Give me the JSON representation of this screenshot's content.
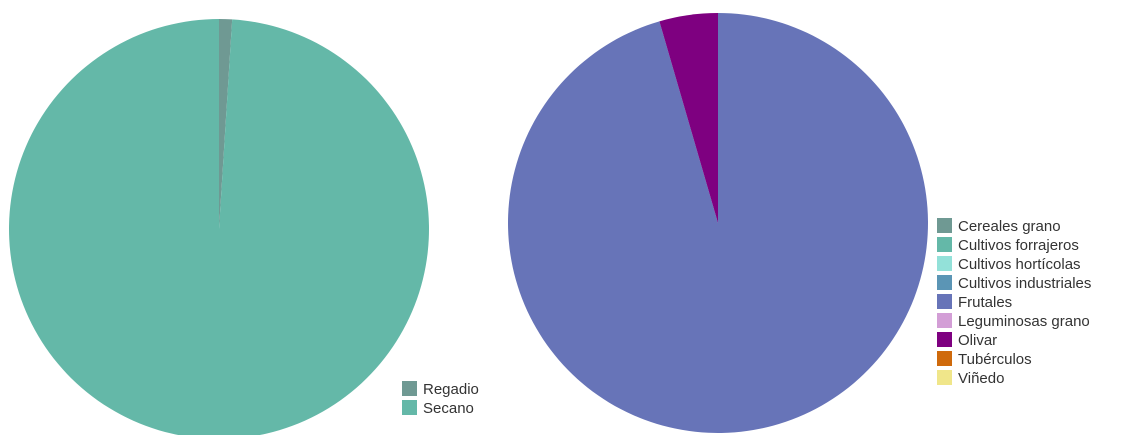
{
  "chart_data": [
    {
      "type": "pie",
      "legend_position": "bottom-right",
      "slices": [
        {
          "label": "Regadio",
          "value": 1.0,
          "color": "#6f9993"
        },
        {
          "label": "Secano",
          "value": 99.0,
          "color": "#64b8a8"
        }
      ]
    },
    {
      "type": "pie",
      "legend_position": "right",
      "slices": [
        {
          "label": "Cereales grano",
          "value": 0,
          "color": "#6f9993"
        },
        {
          "label": "Cultivos forrajeros",
          "value": 0,
          "color": "#64b8a8"
        },
        {
          "label": "Cultivos hortícolas",
          "value": 0,
          "color": "#93e1d9"
        },
        {
          "label": "Cultivos industriales",
          "value": 0,
          "color": "#5b95b5"
        },
        {
          "label": "Frutales",
          "value": 95.5,
          "color": "#6774b8"
        },
        {
          "label": "Leguminosas grano",
          "value": 0,
          "color": "#d39ed6"
        },
        {
          "label": "Olivar",
          "value": 4.5,
          "color": "#7e0080"
        },
        {
          "label": "Tubérculos",
          "value": 0,
          "color": "#cf6a0c"
        },
        {
          "label": "Viñedo",
          "value": 0,
          "color": "#f0e68a"
        }
      ]
    }
  ]
}
